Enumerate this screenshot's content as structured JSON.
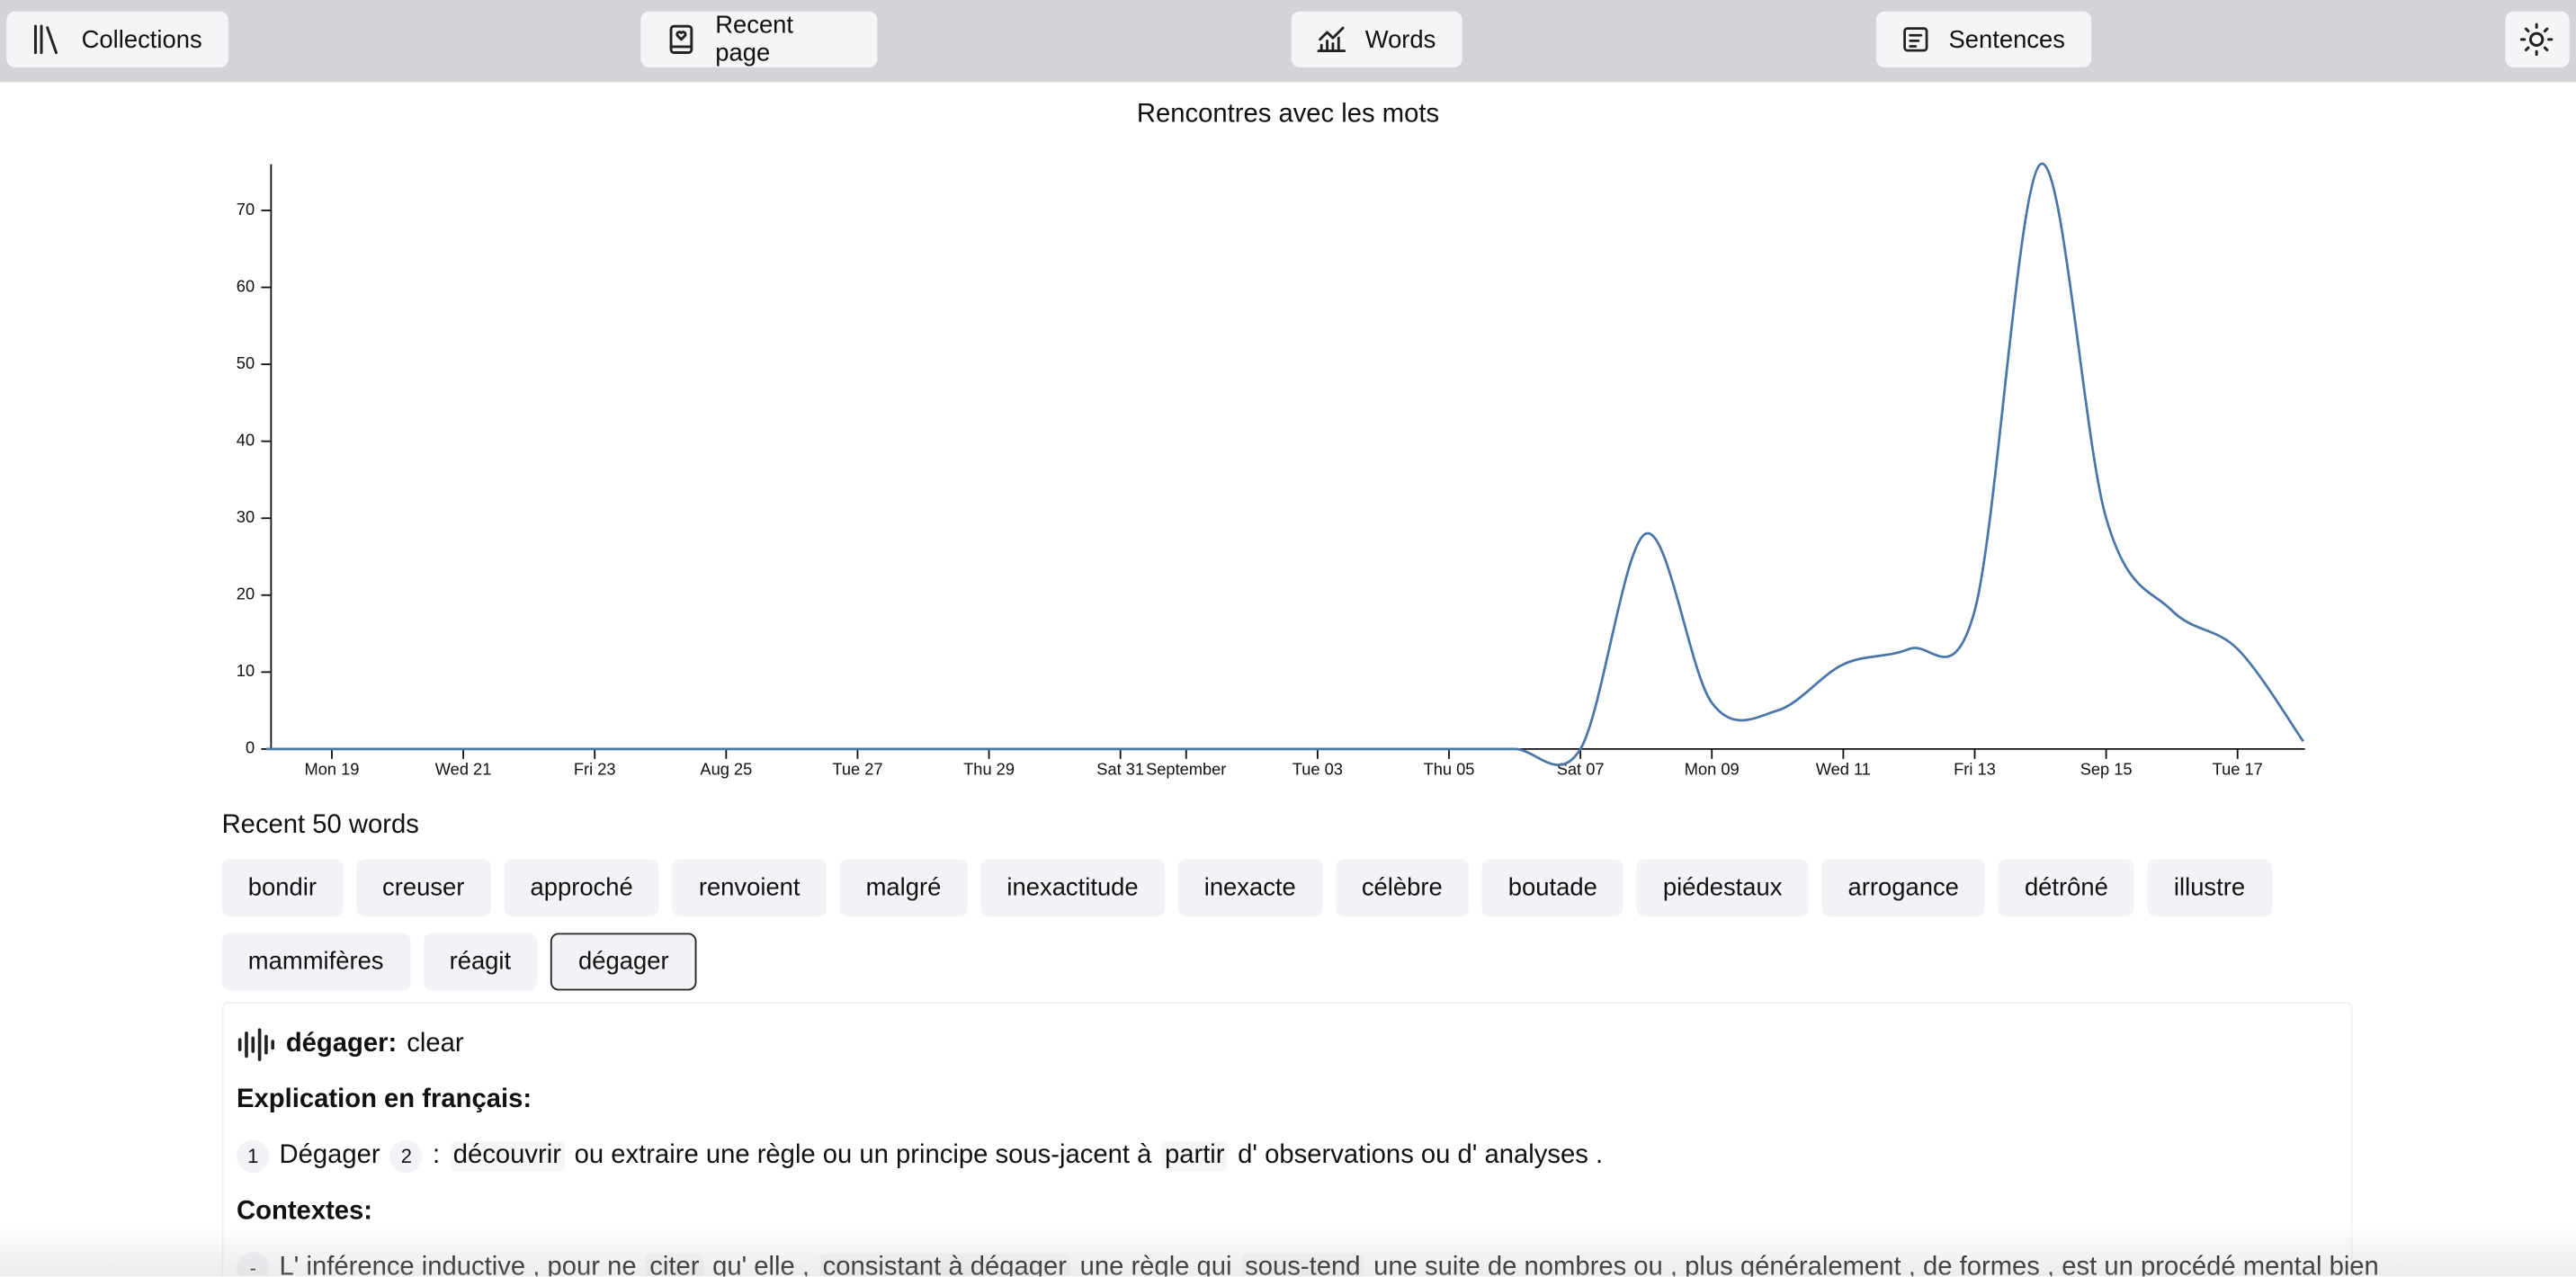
{
  "nav": [
    "Collections",
    "Recent page",
    "Words",
    "Sentences"
  ],
  "chart_data": {
    "type": "line",
    "title": "Rencontres avec les mots",
    "categories": [
      null,
      "Mon 19",
      null,
      "Wed 21",
      null,
      "Fri 23",
      null,
      "Aug 25",
      null,
      "Tue 27",
      null,
      "Thu 29",
      null,
      "Sat 31",
      "September",
      null,
      "Tue 03",
      null,
      "Thu 05",
      null,
      "Sat 07",
      null,
      "Mon 09",
      null,
      "Wed 11",
      null,
      "Fri 13",
      null,
      "Sep 15",
      null,
      "Tue 17",
      null
    ],
    "values": [
      0,
      0,
      0,
      0,
      0,
      0,
      0,
      0,
      0,
      0,
      0,
      0,
      0,
      0,
      0,
      0,
      0,
      0,
      0,
      0,
      0,
      28,
      6,
      5,
      11,
      13,
      18,
      76,
      30,
      18,
      13,
      1
    ],
    "color": "#4a76a8",
    "ylim": [
      0,
      76
    ],
    "yticks": [
      0,
      10,
      20,
      30,
      40,
      50,
      60,
      70
    ],
    "grid": false
  },
  "recent_title": "Recent 50 words",
  "words": [
    "bondir",
    "creuser",
    "approché",
    "renvoient",
    "malgré",
    "inexactitude",
    "inexacte",
    "célèbre",
    "boutade",
    "piédestaux",
    "arrogance",
    "détrôné",
    "illustre",
    "mammifères",
    "réagit",
    "dégager"
  ],
  "selected": "dégager",
  "detail": {
    "word": "dégager:",
    "translation": "clear",
    "explanation_title": "Explication en français:",
    "explanation": [
      "1",
      "Dégager",
      "2",
      ":",
      "découvrir",
      "ou extraire une règle ou un principe sous-jacent à",
      "partir",
      "d' observations ou d' analyses ."
    ],
    "contexts_title": "Contextes:",
    "contexts": [
      "-",
      "L' inférence inductive , pour ne",
      "citer",
      "qu' elle ,",
      "consistant à dégager",
      "une règle qui",
      "sous-tend",
      "une suite de nombres ou , plus généralement , de formes , est un procédé mental bien"
    ]
  }
}
